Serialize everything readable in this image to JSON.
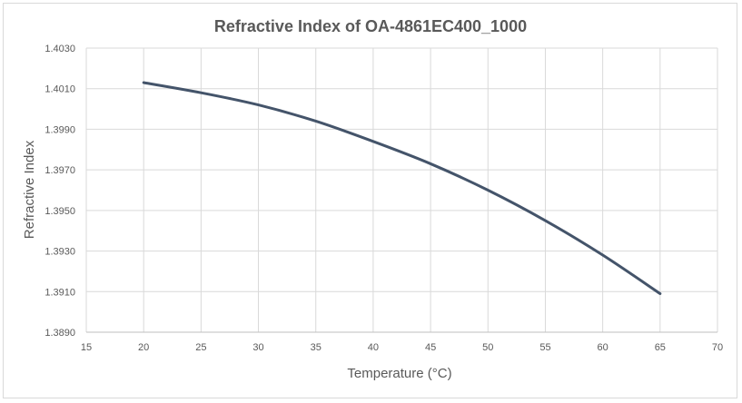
{
  "chart_data": {
    "type": "line",
    "title": "Refractive Index of OA-4861EC400_1000",
    "xlabel": "Temperature (°C)",
    "ylabel": "Refractive Index",
    "xlim": [
      15,
      70
    ],
    "ylim": [
      1.389,
      1.403
    ],
    "xticks": [
      "15",
      "20",
      "25",
      "30",
      "35",
      "40",
      "45",
      "50",
      "55",
      "60",
      "65",
      "70"
    ],
    "yticks": [
      "1.3890",
      "1.3910",
      "1.3930",
      "1.3950",
      "1.3970",
      "1.3990",
      "1.4010",
      "1.4030"
    ],
    "grid": true,
    "series": [
      {
        "color": "#44546a",
        "x": [
          20,
          25,
          30,
          35,
          40,
          45,
          50,
          55,
          60,
          65
        ],
        "y": [
          1.4013,
          1.4008,
          1.4002,
          1.3994,
          1.3984,
          1.3973,
          1.396,
          1.3945,
          1.3928,
          1.3909
        ]
      }
    ]
  }
}
